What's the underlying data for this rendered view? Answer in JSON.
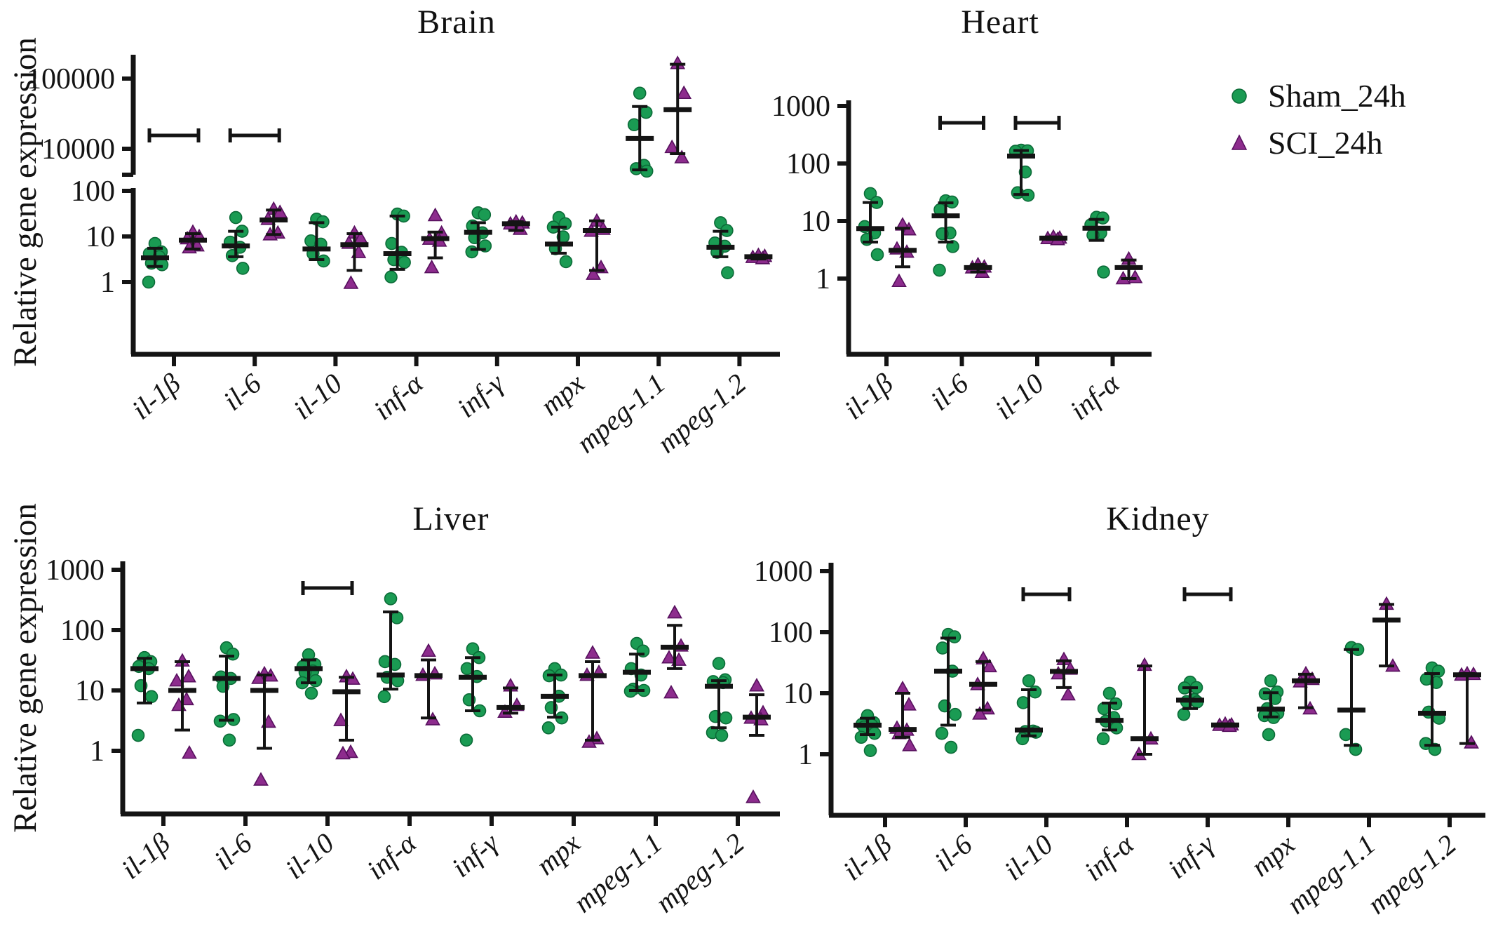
{
  "figure": {
    "ylabel": "Relative gene expression"
  },
  "chart_data": {
    "type": "scatter",
    "subtype": "grouped-dot-plot-log-scale",
    "ylabel": "Relative gene expression",
    "legend_position": "top-right",
    "series": [
      {
        "name": "Sham_24h",
        "marker": "circle",
        "color": "#1a9b53"
      },
      {
        "name": "SCI_24h",
        "marker": "triangle",
        "color": "#8d2c8d"
      }
    ],
    "sig_marker": "horizontal-bracket",
    "panels": [
      {
        "id": "brain",
        "title": "Brain",
        "yticks": [
          1,
          10,
          100
        ],
        "yticks_upper": [
          10000,
          100000
        ],
        "broken_axis": true,
        "sig_bracket_value": 15500,
        "genes": [
          {
            "label": "il-1β",
            "sig": true,
            "sham": {
              "points": [
                7,
                4.6,
                4.2,
                3.6,
                2.6,
                2.4,
                1.0
              ],
              "median": 3.4,
              "lo": 2.2,
              "hi": 5.5
            },
            "sci": {
              "points": [
                12.5,
                10,
                9,
                6.3,
                5.7
              ],
              "median": 8.3,
              "lo": 5.3,
              "hi": 11.5
            }
          },
          {
            "label": "il-6",
            "sig": true,
            "sham": {
              "points": [
                26,
                13,
                7.5,
                5.8,
                3.8,
                2.0
              ],
              "median": 6.2,
              "lo": 3.6,
              "hi": 13
            },
            "sci": {
              "points": [
                40,
                34,
                24,
                12,
                11
              ],
              "median": 23,
              "lo": 11,
              "hi": 38
            }
          },
          {
            "label": "il-10",
            "sig": false,
            "sham": {
              "points": [
                24,
                21,
                8,
                6.8,
                4.2,
                2.9
              ],
              "median": 5.3,
              "lo": 3.1,
              "hi": 20
            },
            "sci": {
              "points": [
                12,
                9,
                7.2,
                4.5,
                0.95
              ],
              "median": 6.6,
              "lo": 1.8,
              "hi": 11.5
            }
          },
          {
            "label": "inf-α",
            "sig": false,
            "sham": {
              "points": [
                31,
                28,
                7,
                4.5,
                3.1,
                2.7,
                1.3
              ],
              "median": 4.2,
              "lo": 1.9,
              "hi": 28
            },
            "sci": {
              "points": [
                29,
                12,
                8.8,
                8,
                2.1
              ],
              "median": 9,
              "lo": 3.4,
              "hi": 12.5
            }
          },
          {
            "label": "inf-γ",
            "sig": false,
            "sham": {
              "points": [
                33,
                30,
                17,
                12,
                9.4,
                6.2,
                4.6
              ],
              "median": 12.3,
              "lo": 5.2,
              "hi": 20
            },
            "sci": {
              "points": [
                21,
                20,
                19,
                14.5
              ],
              "median": 19,
              "lo": 13.5,
              "hi": 21
            }
          },
          {
            "label": "mpx",
            "sig": false,
            "sham": {
              "points": [
                26,
                19,
                16,
                9.8,
                5.4,
                2.8
              ],
              "median": 6.8,
              "lo": 4.3,
              "hi": 16
            },
            "sci": {
              "points": [
                22,
                14.5,
                13.2,
                2.1,
                1.5
              ],
              "median": 13.5,
              "lo": 1.8,
              "hi": 22
            }
          },
          {
            "label": "mpeg-1.1",
            "sig": false,
            "sham": {
              "points": [
                62000,
                33000,
                22000,
                5800,
                5200,
                4800
              ],
              "median": 14000,
              "lo": 5000,
              "hi": 40000
            },
            "sci": {
              "points": [
                165000,
                62000,
                10500,
                7500
              ],
              "median": 36000,
              "lo": 8500,
              "hi": 160000
            }
          },
          {
            "label": "mpeg-1.2",
            "sig": false,
            "sham": {
              "points": [
                20,
                13.5,
                7.2,
                6.1,
                4.5,
                1.6
              ],
              "median": 5.8,
              "lo": 3.6,
              "hi": 13
            },
            "sci": {
              "points": [
                3.9,
                3.7,
                3.5,
                3.3
              ],
              "median": 3.6,
              "lo": 3.2,
              "hi": 3.9
            }
          }
        ]
      },
      {
        "id": "heart",
        "title": "Heart",
        "yticks": [
          1,
          10,
          100,
          1000
        ],
        "broken_axis": false,
        "sig_bracket_value": 510,
        "genes": [
          {
            "label": "il-1β",
            "sig": false,
            "sham": {
              "points": [
                30,
                21,
                8,
                6.2,
                4.8,
                2.6
              ],
              "median": 7.4,
              "lo": 4.3,
              "hi": 21
            },
            "sci": {
              "points": [
                8.6,
                7.1,
                3.3,
                2.9,
                0.9
              ],
              "median": 3.1,
              "lo": 1.6,
              "hi": 7.5
            }
          },
          {
            "label": "il-6",
            "sig": true,
            "sham": {
              "points": [
                22.5,
                21.4,
                15.7,
                6.2,
                6.0,
                3.6,
                1.4
              ],
              "median": 12.3,
              "lo": 4.3,
              "hi": 20.7
            },
            "sci": {
              "points": [
                1.75,
                1.6,
                1.55,
                1.3
              ],
              "median": 1.55,
              "lo": 1.3,
              "hi": 1.75
            }
          },
          {
            "label": "il-10",
            "sig": true,
            "sham": {
              "points": [
                170,
                166,
                163,
                71,
                31,
                28
              ],
              "median": 135,
              "lo": 29,
              "hi": 168
            },
            "sci": {
              "points": [
                5.3,
                5.1,
                5.0,
                4.8
              ],
              "median": 5.05,
              "lo": 4.8,
              "hi": 5.3
            }
          },
          {
            "label": "inf-α",
            "sig": false,
            "sham": {
              "points": [
                11.6,
                11.3,
                8.6,
                6.2,
                5.7,
                1.3
              ],
              "median": 7.5,
              "lo": 4.6,
              "hi": 10.7
            },
            "sci": {
              "points": [
                2.2,
                1.05,
                1.0
              ],
              "median": 1.55,
              "lo": 1.0,
              "hi": 2.1
            }
          }
        ]
      },
      {
        "id": "liver",
        "title": "Liver",
        "yticks": [
          1,
          10,
          100,
          1000
        ],
        "broken_axis": false,
        "sig_bracket_value": 500,
        "genes": [
          {
            "label": "il-1β",
            "sig": false,
            "sham": {
              "points": [
                35,
                30,
                25,
                23,
                12,
                7.9,
                1.8
              ],
              "median": 23,
              "lo": 6.2,
              "hi": 34
            },
            "sci": {
              "points": [
                31,
                17,
                14.5,
                7.1,
                5.7,
                0.92
              ],
              "median": 10,
              "lo": 2.2,
              "hi": 30
            }
          },
          {
            "label": "il-6",
            "sig": false,
            "sham": {
              "points": [
                51,
                40,
                16.7,
                15.8,
                11.7,
                3.3,
                3.1,
                1.5
              ],
              "median": 15.8,
              "lo": 3.2,
              "hi": 37
            },
            "sci": {
              "points": [
                19,
                17.5,
                16,
                3.0,
                0.33
              ],
              "median": 10,
              "lo": 1.1,
              "hi": 18
            }
          },
          {
            "label": "il-10",
            "sig": true,
            "sham": {
              "points": [
                39,
                27,
                25,
                21,
                20,
                14.5,
                13.4,
                9
              ],
              "median": 23,
              "lo": 13.4,
              "hi": 32
            },
            "sci": {
              "points": [
                17,
                15.5,
                3.2,
                0.95,
                0.9
              ],
              "median": 9.5,
              "lo": 1.5,
              "hi": 16.5
            }
          },
          {
            "label": "inf-α",
            "sig": false,
            "sham": {
              "points": [
                330,
                160,
                30,
                27,
                16.5,
                14.5,
                7.9
              ],
              "median": 18,
              "lo": 10.5,
              "hi": 200
            },
            "sci": {
              "points": [
                45,
                19,
                18,
                3.3
              ],
              "median": 17.6,
              "lo": 3.5,
              "hi": 32
            }
          },
          {
            "label": "inf-γ",
            "sig": false,
            "sham": {
              "points": [
                49,
                35,
                23,
                17,
                7,
                4.6,
                1.5
              ],
              "median": 16.5,
              "lo": 4.6,
              "hi": 35
            },
            "sci": {
              "points": [
                12,
                5.7,
                4.4
              ],
              "median": 5.2,
              "lo": 4.2,
              "hi": 11
            }
          },
          {
            "label": "mpx",
            "sig": false,
            "sham": {
              "points": [
                23,
                18,
                17.5,
                8,
                5.2,
                3.5,
                2.4
              ],
              "median": 8,
              "lo": 3.6,
              "hi": 18
            },
            "sci": {
              "points": [
                42,
                20,
                18,
                1.6,
                1.4
              ],
              "median": 17.6,
              "lo": 1.5,
              "hi": 30
            }
          },
          {
            "label": "mpeg-1.1",
            "sig": false,
            "sham": {
              "points": [
                60,
                45,
                23,
                18,
                10.5,
                10,
                9.7
              ],
              "median": 20,
              "lo": 10,
              "hi": 40
            },
            "sci": {
              "points": [
                195,
                55,
                35,
                32,
                9.2
              ],
              "median": 52,
              "lo": 23,
              "hi": 120
            }
          },
          {
            "label": "mpeg-1.2",
            "sig": false,
            "sham": {
              "points": [
                28,
                15,
                14,
                13.5,
                3.7,
                3.5,
                2.0,
                1.8
              ],
              "median": 11.7,
              "lo": 2.4,
              "hi": 14.5
            },
            "sci": {
              "points": [
                12,
                4.3,
                3.5,
                3.3,
                0.17
              ],
              "median": 3.6,
              "lo": 1.8,
              "hi": 8.5
            }
          }
        ]
      },
      {
        "id": "kidney",
        "title": "Kidney",
        "yticks": [
          1,
          10,
          100,
          1000
        ],
        "broken_axis": false,
        "sig_bracket_value": 420,
        "genes": [
          {
            "label": "il-1β",
            "sig": false,
            "sham": {
              "points": [
                4.3,
                3.3,
                3.1,
                3.0,
                2.8,
                2.2,
                1.9,
                1.15
              ],
              "median": 3.0,
              "lo": 2.1,
              "hi": 3.9
            },
            "sci": {
              "points": [
                12,
                6.5,
                2.7,
                2.5,
                2.2,
                1.4
              ],
              "median": 2.55,
              "lo": 1.9,
              "hi": 10
            }
          },
          {
            "label": "il-6",
            "sig": false,
            "sham": {
              "points": [
                92,
                84,
                55,
                23,
                6.2,
                4.5,
                2.2,
                1.3
              ],
              "median": 23,
              "lo": 3.0,
              "hi": 80
            },
            "sci": {
              "points": [
                37,
                27.5,
                14,
                5.6,
                4.6
              ],
              "median": 14,
              "lo": 5.3,
              "hi": 33
            }
          },
          {
            "label": "il-10",
            "sig": true,
            "sham": {
              "points": [
                16,
                10.5,
                7,
                2.4,
                2.35,
                2.3,
                1.8
              ],
              "median": 2.5,
              "lo": 2.0,
              "hi": 11.4
            },
            "sci": {
              "points": [
                36,
                25,
                21,
                9.5
              ],
              "median": 22.8,
              "lo": 12.4,
              "hi": 34
            }
          },
          {
            "label": "inf-α",
            "sig": false,
            "sham": {
              "points": [
                10,
                6.7,
                5.6,
                4.0,
                3.5,
                2.7,
                1.8
              ],
              "median": 3.6,
              "lo": 2.5,
              "hi": 6.9
            },
            "sci": {
              "points": [
                29,
                1.8,
                1.0
              ],
              "median": 1.8,
              "lo": 1.0,
              "hi": 28
            }
          },
          {
            "label": "inf-γ",
            "sig": true,
            "sham": {
              "points": [
                15.2,
                12.4,
                12.2,
                7.9,
                7.3,
                7.2,
                4.5
              ],
              "median": 7.7,
              "lo": 5.6,
              "hi": 12.3
            },
            "sci": {
              "points": [
                3.15,
                3.05,
                3.0,
                2.9
              ],
              "median": 3.02,
              "lo": 2.9,
              "hi": 3.15
            }
          },
          {
            "label": "mpx",
            "sig": false,
            "sham": {
              "points": [
                16,
                10.5,
                9.8,
                8.2,
                5.6,
                4.7,
                4.3,
                4.0,
                2.1
              ],
              "median": 5.5,
              "lo": 4.1,
              "hi": 10.2
            },
            "sci": {
              "points": [
                21,
                17,
                15.5,
                5.6
              ],
              "median": 16,
              "lo": 5.8,
              "hi": 20.5
            }
          },
          {
            "label": "mpeg-1.1",
            "sig": false,
            "sham": {
              "points": [
                56,
                52,
                2.1,
                1.2
              ],
              "median": 5.3,
              "lo": 1.4,
              "hi": 52
            },
            "sci": {
              "points": [
                290,
                28
              ],
              "median": 158,
              "lo": 28,
              "hi": 285
            }
          },
          {
            "label": "mpeg-1.2",
            "sig": false,
            "sham": {
              "points": [
                26,
                23,
                17,
                15,
                4.9,
                3.9,
                1.5,
                1.2
              ],
              "median": 4.7,
              "lo": 1.4,
              "hi": 21
            },
            "sci": {
              "points": [
                21,
                20.5,
                20,
                1.55
              ],
              "median": 20,
              "lo": 1.5,
              "hi": 21
            }
          }
        ]
      }
    ]
  }
}
